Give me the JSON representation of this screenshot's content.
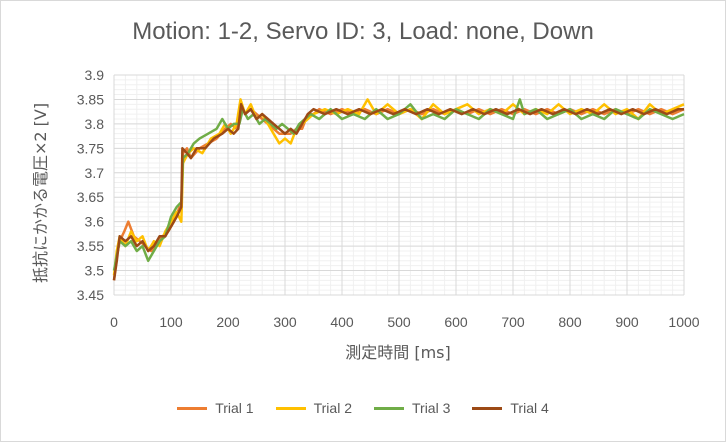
{
  "chart_data": {
    "type": "line",
    "title": "Motion: 1-2, Servo ID: 3, Load: none, Down",
    "xlabel": "測定時間 [ms]",
    "ylabel": "抵抗にかかる電圧×2 [V]",
    "xlim": [
      0,
      1000
    ],
    "ylim": [
      3.45,
      3.9
    ],
    "x_ticks": [
      "0",
      "100",
      "200",
      "300",
      "400",
      "500",
      "600",
      "700",
      "800",
      "900",
      "1000"
    ],
    "y_ticks": [
      "3.45",
      "3.5",
      "3.55",
      "3.6",
      "3.65",
      "3.7",
      "3.75",
      "3.8",
      "3.85",
      "3.9"
    ],
    "grid": true,
    "legend_position": "bottom",
    "series": [
      {
        "name": "Trial 1",
        "color": "#ED7D31",
        "points": [
          [
            0,
            3.48
          ],
          [
            5,
            3.53
          ],
          [
            10,
            3.56
          ],
          [
            18,
            3.58
          ],
          [
            25,
            3.6
          ],
          [
            35,
            3.57
          ],
          [
            45,
            3.56
          ],
          [
            55,
            3.55
          ],
          [
            65,
            3.54
          ],
          [
            75,
            3.55
          ],
          [
            85,
            3.57
          ],
          [
            95,
            3.58
          ],
          [
            105,
            3.6
          ],
          [
            115,
            3.63
          ],
          [
            118,
            3.62
          ],
          [
            121,
            3.74
          ],
          [
            128,
            3.75
          ],
          [
            135,
            3.73
          ],
          [
            150,
            3.75
          ],
          [
            165,
            3.76
          ],
          [
            180,
            3.77
          ],
          [
            195,
            3.79
          ],
          [
            205,
            3.8
          ],
          [
            215,
            3.79
          ],
          [
            220,
            3.81
          ],
          [
            224,
            3.84
          ],
          [
            230,
            3.82
          ],
          [
            240,
            3.83
          ],
          [
            250,
            3.82
          ],
          [
            260,
            3.81
          ],
          [
            270,
            3.8
          ],
          [
            280,
            3.79
          ],
          [
            290,
            3.78
          ],
          [
            300,
            3.78
          ],
          [
            310,
            3.78
          ],
          [
            320,
            3.79
          ],
          [
            330,
            3.79
          ],
          [
            340,
            3.82
          ],
          [
            350,
            3.82
          ],
          [
            360,
            3.83
          ],
          [
            380,
            3.82
          ],
          [
            400,
            3.83
          ],
          [
            420,
            3.82
          ],
          [
            440,
            3.83
          ],
          [
            460,
            3.82
          ],
          [
            480,
            3.83
          ],
          [
            500,
            3.82
          ],
          [
            520,
            3.83
          ],
          [
            540,
            3.82
          ],
          [
            560,
            3.83
          ],
          [
            580,
            3.82
          ],
          [
            600,
            3.83
          ],
          [
            620,
            3.82
          ],
          [
            640,
            3.83
          ],
          [
            660,
            3.82
          ],
          [
            680,
            3.83
          ],
          [
            700,
            3.82
          ],
          [
            720,
            3.83
          ],
          [
            740,
            3.82
          ],
          [
            760,
            3.83
          ],
          [
            780,
            3.82
          ],
          [
            800,
            3.83
          ],
          [
            820,
            3.82
          ],
          [
            840,
            3.83
          ],
          [
            860,
            3.82
          ],
          [
            880,
            3.83
          ],
          [
            900,
            3.82
          ],
          [
            920,
            3.83
          ],
          [
            940,
            3.82
          ],
          [
            960,
            3.83
          ],
          [
            980,
            3.82
          ],
          [
            1000,
            3.83
          ]
        ]
      },
      {
        "name": "Trial 2",
        "color": "#FFC000",
        "points": [
          [
            0,
            3.49
          ],
          [
            5,
            3.54
          ],
          [
            10,
            3.57
          ],
          [
            20,
            3.55
          ],
          [
            30,
            3.58
          ],
          [
            40,
            3.56
          ],
          [
            50,
            3.57
          ],
          [
            60,
            3.54
          ],
          [
            70,
            3.56
          ],
          [
            80,
            3.55
          ],
          [
            90,
            3.58
          ],
          [
            100,
            3.6
          ],
          [
            110,
            3.62
          ],
          [
            118,
            3.6
          ],
          [
            121,
            3.72
          ],
          [
            130,
            3.74
          ],
          [
            140,
            3.75
          ],
          [
            155,
            3.74
          ],
          [
            170,
            3.77
          ],
          [
            185,
            3.78
          ],
          [
            195,
            3.8
          ],
          [
            205,
            3.78
          ],
          [
            215,
            3.8
          ],
          [
            222,
            3.85
          ],
          [
            230,
            3.82
          ],
          [
            240,
            3.84
          ],
          [
            250,
            3.81
          ],
          [
            260,
            3.82
          ],
          [
            270,
            3.8
          ],
          [
            280,
            3.78
          ],
          [
            290,
            3.76
          ],
          [
            300,
            3.77
          ],
          [
            310,
            3.76
          ],
          [
            320,
            3.79
          ],
          [
            330,
            3.8
          ],
          [
            340,
            3.81
          ],
          [
            350,
            3.82
          ],
          [
            370,
            3.83
          ],
          [
            390,
            3.82
          ],
          [
            410,
            3.83
          ],
          [
            430,
            3.82
          ],
          [
            445,
            3.85
          ],
          [
            460,
            3.82
          ],
          [
            480,
            3.84
          ],
          [
            500,
            3.82
          ],
          [
            520,
            3.83
          ],
          [
            540,
            3.81
          ],
          [
            560,
            3.84
          ],
          [
            580,
            3.82
          ],
          [
            600,
            3.83
          ],
          [
            620,
            3.84
          ],
          [
            640,
            3.82
          ],
          [
            660,
            3.83
          ],
          [
            680,
            3.82
          ],
          [
            700,
            3.84
          ],
          [
            720,
            3.82
          ],
          [
            740,
            3.83
          ],
          [
            760,
            3.82
          ],
          [
            780,
            3.84
          ],
          [
            800,
            3.82
          ],
          [
            820,
            3.83
          ],
          [
            840,
            3.82
          ],
          [
            860,
            3.84
          ],
          [
            880,
            3.82
          ],
          [
            900,
            3.83
          ],
          [
            920,
            3.81
          ],
          [
            940,
            3.84
          ],
          [
            960,
            3.82
          ],
          [
            980,
            3.83
          ],
          [
            1000,
            3.84
          ]
        ]
      },
      {
        "name": "Trial 3",
        "color": "#70AD47",
        "points": [
          [
            0,
            3.5
          ],
          [
            5,
            3.53
          ],
          [
            10,
            3.56
          ],
          [
            20,
            3.55
          ],
          [
            30,
            3.56
          ],
          [
            40,
            3.54
          ],
          [
            50,
            3.55
          ],
          [
            60,
            3.52
          ],
          [
            70,
            3.54
          ],
          [
            80,
            3.56
          ],
          [
            90,
            3.57
          ],
          [
            100,
            3.61
          ],
          [
            110,
            3.63
          ],
          [
            118,
            3.64
          ],
          [
            121,
            3.73
          ],
          [
            130,
            3.74
          ],
          [
            140,
            3.76
          ],
          [
            150,
            3.77
          ],
          [
            165,
            3.78
          ],
          [
            180,
            3.79
          ],
          [
            190,
            3.81
          ],
          [
            200,
            3.79
          ],
          [
            210,
            3.8
          ],
          [
            220,
            3.8
          ],
          [
            226,
            3.83
          ],
          [
            235,
            3.81
          ],
          [
            245,
            3.82
          ],
          [
            255,
            3.8
          ],
          [
            265,
            3.81
          ],
          [
            275,
            3.8
          ],
          [
            285,
            3.79
          ],
          [
            295,
            3.8
          ],
          [
            305,
            3.79
          ],
          [
            315,
            3.78
          ],
          [
            325,
            3.8
          ],
          [
            335,
            3.81
          ],
          [
            345,
            3.82
          ],
          [
            360,
            3.81
          ],
          [
            380,
            3.83
          ],
          [
            400,
            3.81
          ],
          [
            420,
            3.82
          ],
          [
            440,
            3.81
          ],
          [
            460,
            3.83
          ],
          [
            480,
            3.81
          ],
          [
            500,
            3.82
          ],
          [
            520,
            3.84
          ],
          [
            540,
            3.81
          ],
          [
            560,
            3.82
          ],
          [
            580,
            3.81
          ],
          [
            600,
            3.83
          ],
          [
            620,
            3.82
          ],
          [
            640,
            3.81
          ],
          [
            660,
            3.83
          ],
          [
            680,
            3.82
          ],
          [
            700,
            3.81
          ],
          [
            712,
            3.85
          ],
          [
            720,
            3.82
          ],
          [
            740,
            3.83
          ],
          [
            760,
            3.81
          ],
          [
            780,
            3.82
          ],
          [
            800,
            3.83
          ],
          [
            820,
            3.81
          ],
          [
            840,
            3.82
          ],
          [
            860,
            3.81
          ],
          [
            880,
            3.83
          ],
          [
            900,
            3.82
          ],
          [
            920,
            3.81
          ],
          [
            940,
            3.83
          ],
          [
            960,
            3.82
          ],
          [
            980,
            3.81
          ],
          [
            1000,
            3.82
          ]
        ]
      },
      {
        "name": "Trial 4",
        "color": "#9C4A16",
        "points": [
          [
            0,
            3.48
          ],
          [
            5,
            3.52
          ],
          [
            10,
            3.57
          ],
          [
            20,
            3.56
          ],
          [
            30,
            3.57
          ],
          [
            40,
            3.55
          ],
          [
            50,
            3.56
          ],
          [
            60,
            3.54
          ],
          [
            70,
            3.55
          ],
          [
            80,
            3.57
          ],
          [
            90,
            3.57
          ],
          [
            100,
            3.59
          ],
          [
            110,
            3.61
          ],
          [
            118,
            3.63
          ],
          [
            120,
            3.75
          ],
          [
            128,
            3.74
          ],
          [
            135,
            3.73
          ],
          [
            145,
            3.75
          ],
          [
            160,
            3.75
          ],
          [
            175,
            3.77
          ],
          [
            190,
            3.78
          ],
          [
            200,
            3.79
          ],
          [
            210,
            3.78
          ],
          [
            218,
            3.79
          ],
          [
            223,
            3.84
          ],
          [
            230,
            3.82
          ],
          [
            240,
            3.83
          ],
          [
            250,
            3.81
          ],
          [
            260,
            3.82
          ],
          [
            270,
            3.81
          ],
          [
            280,
            3.8
          ],
          [
            290,
            3.79
          ],
          [
            300,
            3.78
          ],
          [
            310,
            3.79
          ],
          [
            320,
            3.78
          ],
          [
            330,
            3.8
          ],
          [
            340,
            3.82
          ],
          [
            350,
            3.83
          ],
          [
            370,
            3.82
          ],
          [
            390,
            3.83
          ],
          [
            410,
            3.82
          ],
          [
            430,
            3.83
          ],
          [
            450,
            3.82
          ],
          [
            470,
            3.83
          ],
          [
            490,
            3.82
          ],
          [
            510,
            3.83
          ],
          [
            530,
            3.82
          ],
          [
            550,
            3.83
          ],
          [
            570,
            3.82
          ],
          [
            590,
            3.83
          ],
          [
            610,
            3.82
          ],
          [
            630,
            3.83
          ],
          [
            650,
            3.82
          ],
          [
            670,
            3.83
          ],
          [
            690,
            3.82
          ],
          [
            710,
            3.83
          ],
          [
            730,
            3.82
          ],
          [
            750,
            3.83
          ],
          [
            770,
            3.82
          ],
          [
            790,
            3.83
          ],
          [
            810,
            3.82
          ],
          [
            830,
            3.83
          ],
          [
            850,
            3.82
          ],
          [
            870,
            3.83
          ],
          [
            890,
            3.82
          ],
          [
            910,
            3.83
          ],
          [
            930,
            3.82
          ],
          [
            950,
            3.83
          ],
          [
            970,
            3.82
          ],
          [
            990,
            3.83
          ],
          [
            1000,
            3.83
          ]
        ]
      }
    ]
  }
}
